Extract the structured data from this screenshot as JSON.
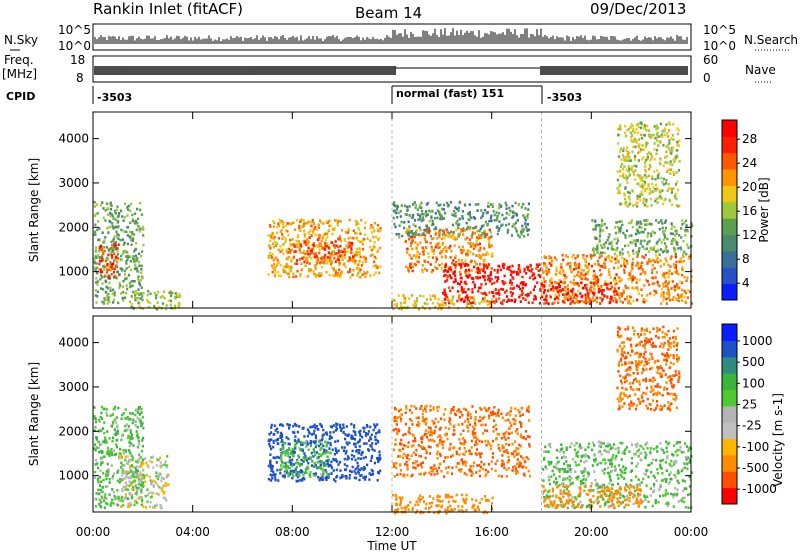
{
  "header": {
    "station": "Rankin Inlet (fitACF)",
    "beam": "Beam 14",
    "date": "09/Dec/2013"
  },
  "top_panels": {
    "nsky_label": "N.Sky",
    "nsky_ticks": [
      "10^5",
      "10^0"
    ],
    "nsearch_label": "N.Search",
    "nsearch_ticks": [
      "10^5",
      "10^0"
    ],
    "freq_label": "Freq.",
    "freq_unit": "[MHz]",
    "freq_ticks": [
      "18",
      "8"
    ],
    "nave_label": "Nave",
    "nave_ticks": [
      "60",
      "0"
    ],
    "cpid_label": "CPID",
    "cpid_segments": [
      {
        "label": "-3503",
        "start_hour": 0,
        "end_hour": 12
      },
      {
        "label": "normal (fast) 151",
        "start_hour": 12,
        "end_hour": 18
      },
      {
        "label": "-3503",
        "start_hour": 18,
        "end_hour": 24
      }
    ]
  },
  "colors": {
    "power_scale": [
      "#0a1eff",
      "#2850c8",
      "#3c6e9b",
      "#4b8a6e",
      "#5aa050",
      "#a0c83c",
      "#f0c814",
      "#ff9600",
      "#ff5a00",
      "#ff1e00",
      "#ff0000"
    ],
    "velocity_scale": [
      "#ff0000",
      "#ff5000",
      "#ff8c00",
      "#ffb400",
      "#c0c0c0",
      "#b4b4b4",
      "#50c830",
      "#3cb43c",
      "#2d8c7d",
      "#1e50c8",
      "#0a1eff"
    ]
  },
  "chart_data": [
    {
      "type": "heatmap",
      "name": "power",
      "ylabel": "Slant Range [km]",
      "xlabel": "Time UT",
      "xlim_hours": [
        0,
        24
      ],
      "ylim": [
        180,
        4600
      ],
      "x_ticks": [
        "00:00",
        "04:00",
        "08:00",
        "12:00",
        "16:00",
        "20:00",
        "00:00"
      ],
      "y_ticks": [
        1000,
        2000,
        3000,
        4000
      ],
      "colorbar_label": "Power [dB]",
      "colorbar_ticks": [
        "28",
        "24",
        "20",
        "16",
        "12",
        "8",
        "4"
      ],
      "colorbar_range": [
        0,
        30
      ],
      "regions": [
        {
          "t0": 0.0,
          "t1": 2.0,
          "r0": 300,
          "r1": 2600,
          "value": 12
        },
        {
          "t0": 0.2,
          "t1": 1.0,
          "r0": 900,
          "r1": 1700,
          "value": 26
        },
        {
          "t0": 1.5,
          "t1": 3.5,
          "r0": 180,
          "r1": 600,
          "value": 14
        },
        {
          "t0": 7.0,
          "t1": 11.5,
          "r0": 900,
          "r1": 2200,
          "value": 20
        },
        {
          "t0": 8.0,
          "t1": 10.5,
          "r0": 1200,
          "r1": 1800,
          "value": 25
        },
        {
          "t0": 12.0,
          "t1": 17.5,
          "r0": 1800,
          "r1": 2600,
          "value": 10
        },
        {
          "t0": 12.5,
          "t1": 16.0,
          "r0": 1000,
          "r1": 2000,
          "value": 22
        },
        {
          "t0": 14.0,
          "t1": 18.0,
          "r0": 300,
          "r1": 1200,
          "value": 29
        },
        {
          "t0": 12.0,
          "t1": 16.0,
          "r0": 180,
          "r1": 500,
          "value": 18
        },
        {
          "t0": 18.0,
          "t1": 24.0,
          "r0": 300,
          "r1": 1400,
          "value": 22
        },
        {
          "t0": 18.0,
          "t1": 21.0,
          "r0": 300,
          "r1": 800,
          "value": 28
        },
        {
          "t0": 20.0,
          "t1": 24.0,
          "r0": 1400,
          "r1": 2200,
          "value": 12
        },
        {
          "t0": 21.0,
          "t1": 23.5,
          "r0": 2500,
          "r1": 4400,
          "value": 16
        }
      ]
    },
    {
      "type": "heatmap",
      "name": "velocity",
      "ylabel": "Slant Range [km]",
      "xlabel": "Time UT",
      "xlim_hours": [
        0,
        24
      ],
      "ylim": [
        180,
        4600
      ],
      "x_ticks": [
        "00:00",
        "04:00",
        "08:00",
        "12:00",
        "16:00",
        "20:00",
        "00:00"
      ],
      "y_ticks": [
        1000,
        2000,
        3000,
        4000
      ],
      "colorbar_label": "Velocity [m s-1]",
      "colorbar_ticks": [
        "1000",
        "500",
        "100",
        "25",
        "-25",
        "-100",
        "-500",
        "-1000"
      ],
      "regions": [
        {
          "t0": 0.0,
          "t1": 2.0,
          "r0": 300,
          "r1": 2600,
          "value": 100
        },
        {
          "t0": 1.0,
          "t1": 3.0,
          "r0": 300,
          "r1": 1500,
          "value": 0
        },
        {
          "t0": 7.0,
          "t1": 11.5,
          "r0": 900,
          "r1": 2200,
          "value": 800
        },
        {
          "t0": 7.5,
          "t1": 9.5,
          "r0": 1000,
          "r1": 1800,
          "value": 100
        },
        {
          "t0": 12.0,
          "t1": 17.5,
          "r0": 1000,
          "r1": 2600,
          "value": -300
        },
        {
          "t0": 12.0,
          "t1": 16.0,
          "r0": 180,
          "r1": 600,
          "value": -200
        },
        {
          "t0": 18.0,
          "t1": 24.0,
          "r0": 300,
          "r1": 1800,
          "value": 80
        },
        {
          "t0": 18.0,
          "t1": 22.0,
          "r0": 300,
          "r1": 800,
          "value": -200
        },
        {
          "t0": 21.0,
          "t1": 23.5,
          "r0": 2500,
          "r1": 4400,
          "value": -300
        }
      ]
    }
  ]
}
